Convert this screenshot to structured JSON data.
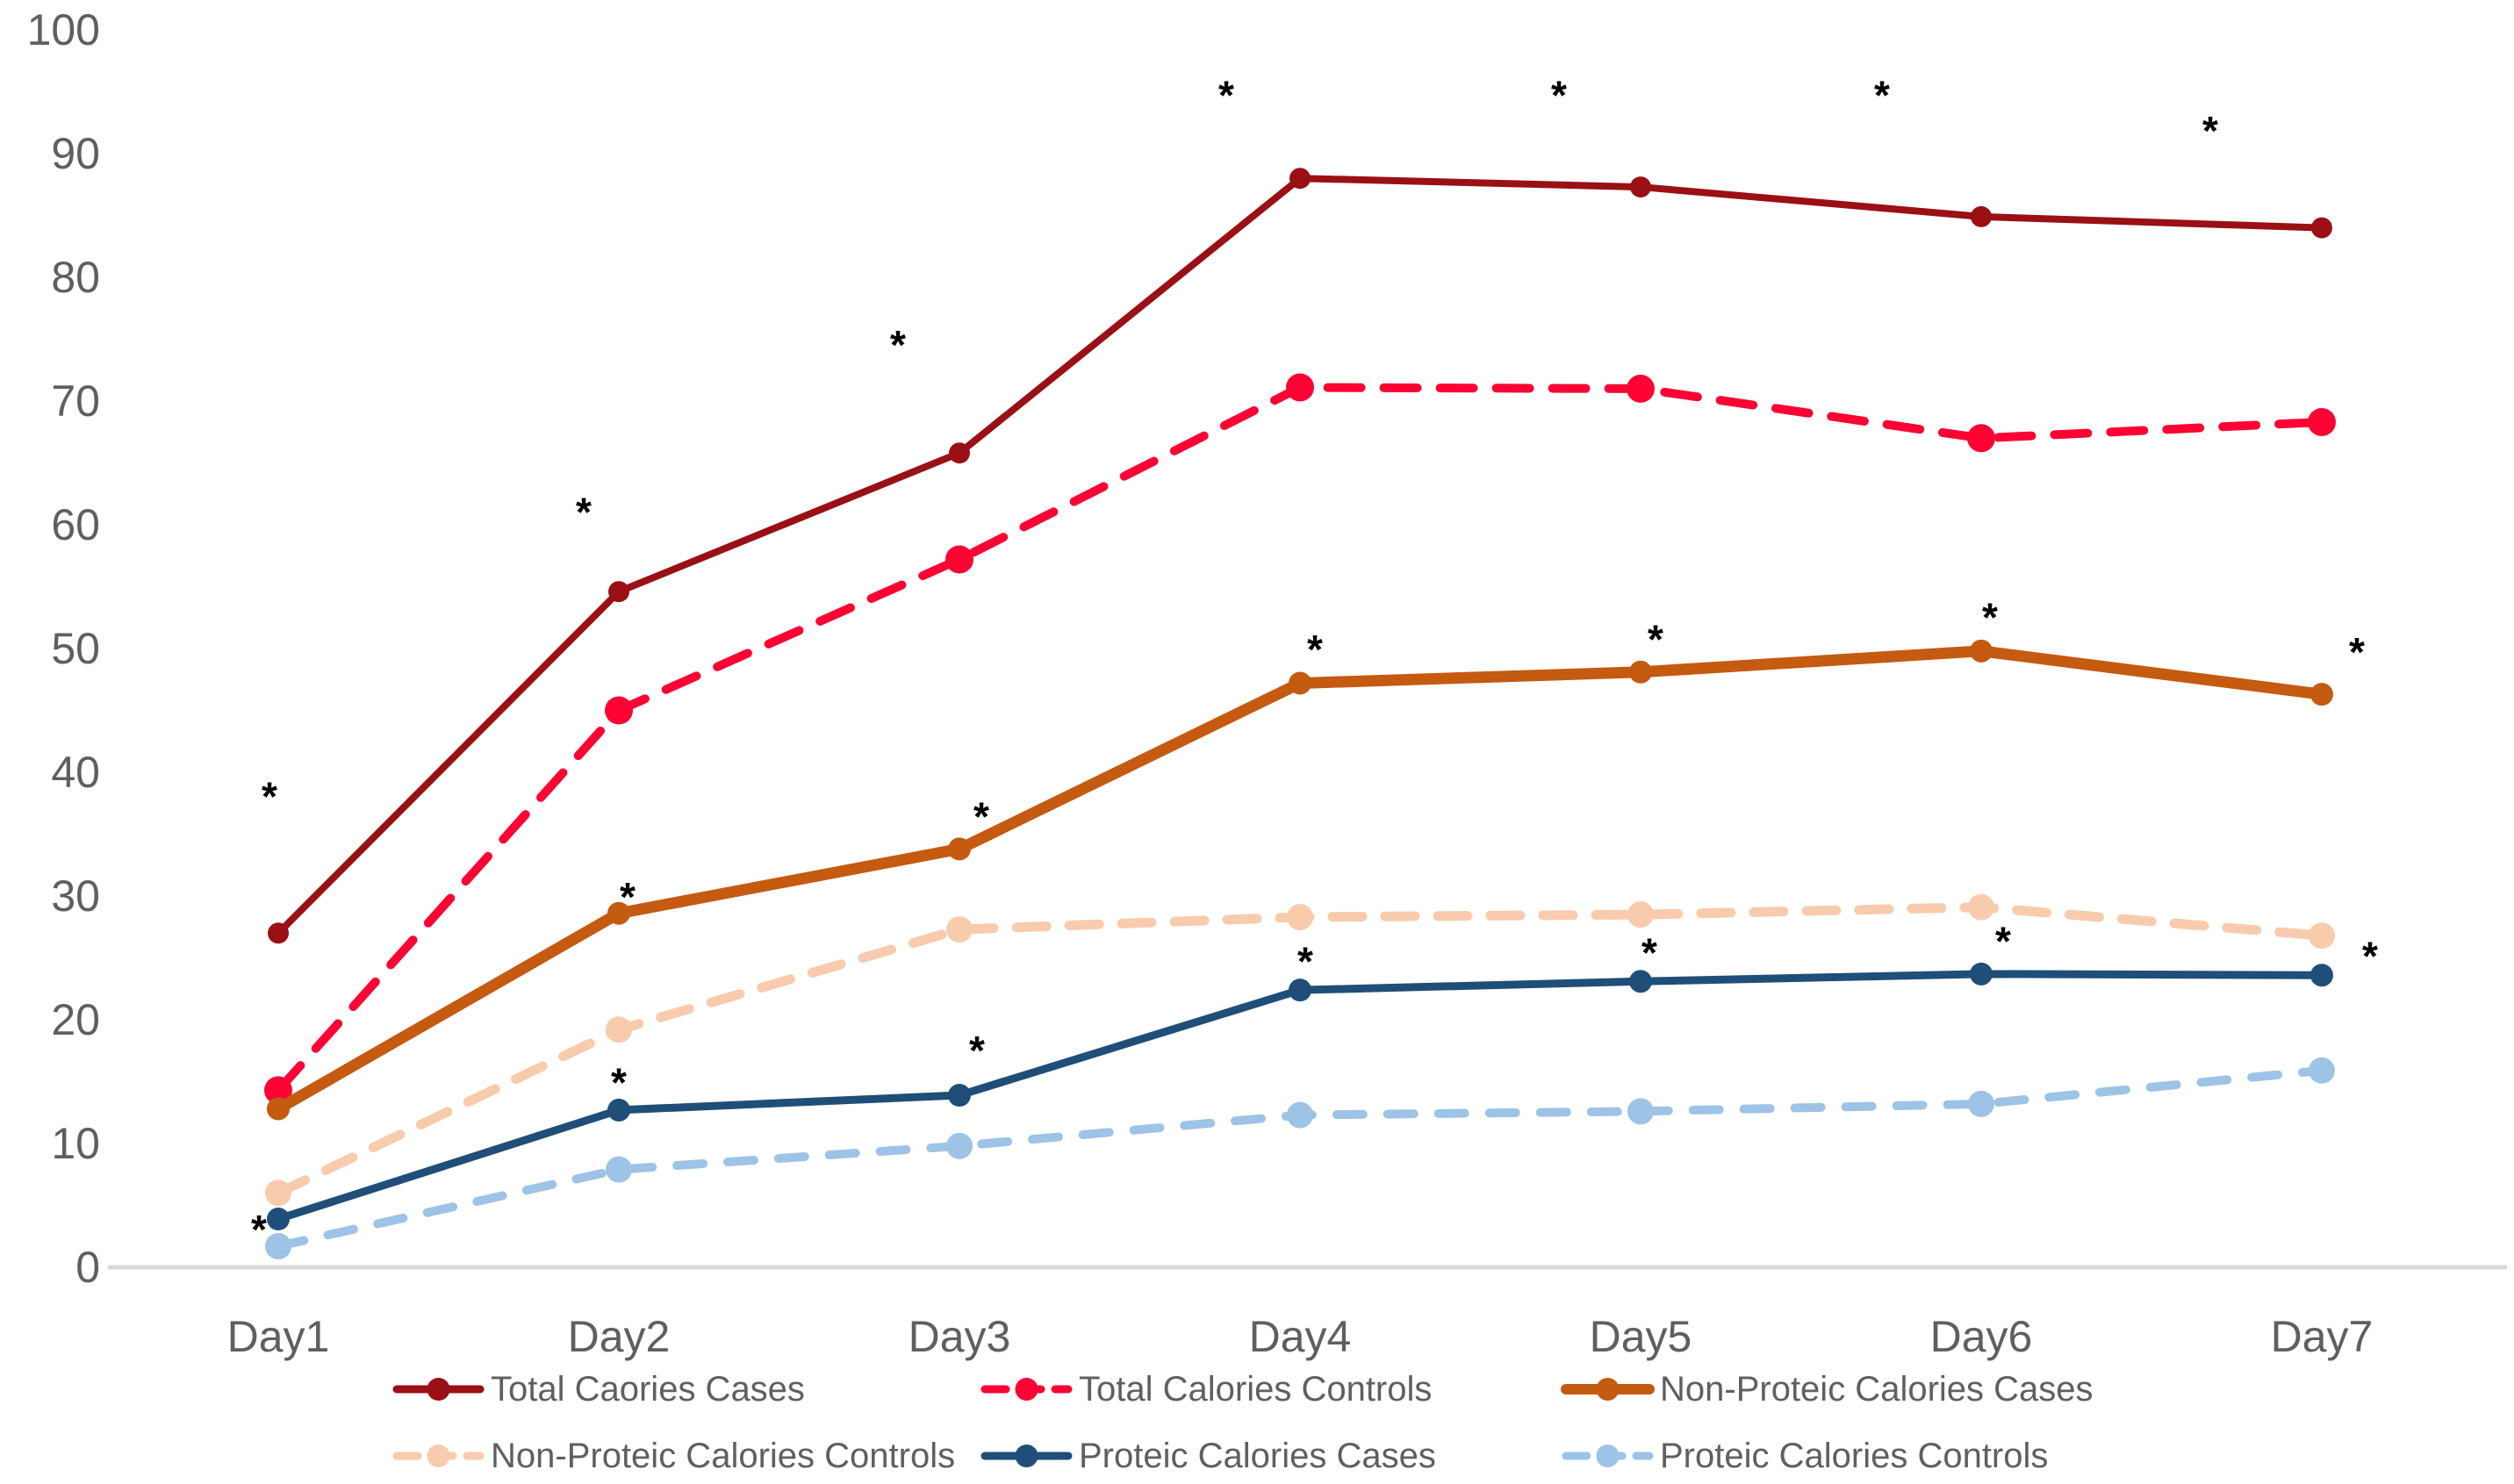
{
  "chart_data": {
    "type": "line",
    "title": "",
    "xlabel": "",
    "ylabel": "",
    "categories": [
      "Day1",
      "Day2",
      "Day3",
      "Day4",
      "Day5",
      "Day6",
      "Day7"
    ],
    "y_axis": {
      "min": 0,
      "max": 100,
      "tick_step": 10,
      "tick_labels": [
        "0",
        "10",
        "20",
        "30",
        "40",
        "50",
        "60",
        "70",
        "80",
        "90",
        "100"
      ],
      "grid": false
    },
    "series": [
      {
        "name": "Total Caories Cases",
        "color": "#9A1014",
        "style": "solid",
        "marker": "circle",
        "values": [
          27.0,
          54.6,
          65.8,
          88.0,
          87.3,
          84.9,
          84.0
        ]
      },
      {
        "name": "Total Calories Controls",
        "color": "#FC0334",
        "style": "dashed",
        "marker": "circle",
        "values": [
          14.3,
          45.0,
          57.2,
          71.1,
          71.0,
          67.0,
          68.3
        ]
      },
      {
        "name": "Non-Proteic Calories Cases",
        "color": "#C55A11",
        "style": "solid",
        "marker": "circle",
        "values": [
          12.8,
          28.6,
          33.8,
          47.2,
          48.1,
          49.8,
          46.3
        ]
      },
      {
        "name": "Non-Proteic Calories Controls",
        "color": "#F8CBAD",
        "style": "dashed",
        "marker": "circle",
        "values": [
          6.0,
          19.2,
          27.3,
          28.3,
          28.5,
          29.1,
          26.8
        ]
      },
      {
        "name": "Proteic Calories Cases",
        "color": "#1F4E79",
        "style": "solid",
        "marker": "circle",
        "values": [
          3.9,
          12.7,
          13.9,
          22.4,
          23.1,
          23.7,
          23.6
        ]
      },
      {
        "name": "Proteic Calories Controls",
        "color": "#9DC3E6",
        "style": "dashed",
        "marker": "circle",
        "values": [
          1.7,
          7.9,
          9.8,
          12.3,
          12.6,
          13.2,
          15.9
        ]
      }
    ],
    "annotations": {
      "symbol": "*",
      "color": "#000000",
      "items": [
        {
          "day": 0,
          "value": 38.6,
          "dx": -10
        },
        {
          "day": 0,
          "value": 3.6,
          "dx": -22
        },
        {
          "day": 1,
          "value": 61.6,
          "dx": -40
        },
        {
          "day": 1,
          "value": 30.5,
          "dx": 10
        },
        {
          "day": 1,
          "value": 15.5,
          "dx": 0
        },
        {
          "day": 2,
          "value": 75.1,
          "dx": -70
        },
        {
          "day": 2,
          "value": 37.0,
          "dx": 25
        },
        {
          "day": 2,
          "value": 18.1,
          "dx": 20
        },
        {
          "day": 3,
          "value": 95.3,
          "dx": -84
        },
        {
          "day": 3,
          "value": 50.5,
          "dx": 17
        },
        {
          "day": 3,
          "value": 25.3,
          "dx": 6
        },
        {
          "day": 4,
          "value": 95.3,
          "dx": -93
        },
        {
          "day": 4,
          "value": 51.3,
          "dx": 17
        },
        {
          "day": 4,
          "value": 26.0,
          "dx": 10
        },
        {
          "day": 5,
          "value": 95.3,
          "dx": -113
        },
        {
          "day": 5,
          "value": 53.1,
          "dx": 10
        },
        {
          "day": 5,
          "value": 26.9,
          "dx": 25
        },
        {
          "day": 6,
          "value": 92.4,
          "dx": -127
        },
        {
          "day": 6,
          "value": 50.3,
          "dx": 40
        },
        {
          "day": 6,
          "value": 25.7,
          "dx": 55
        }
      ]
    },
    "legend": {
      "position": "bottom",
      "rows": [
        [
          0,
          1,
          2
        ],
        [
          3,
          4,
          5
        ]
      ]
    },
    "axis_colors": {
      "axis_line": "#D9D9D9",
      "tick_label": "#5F5F5F",
      "legend_label": "#5F5F5F"
    }
  }
}
